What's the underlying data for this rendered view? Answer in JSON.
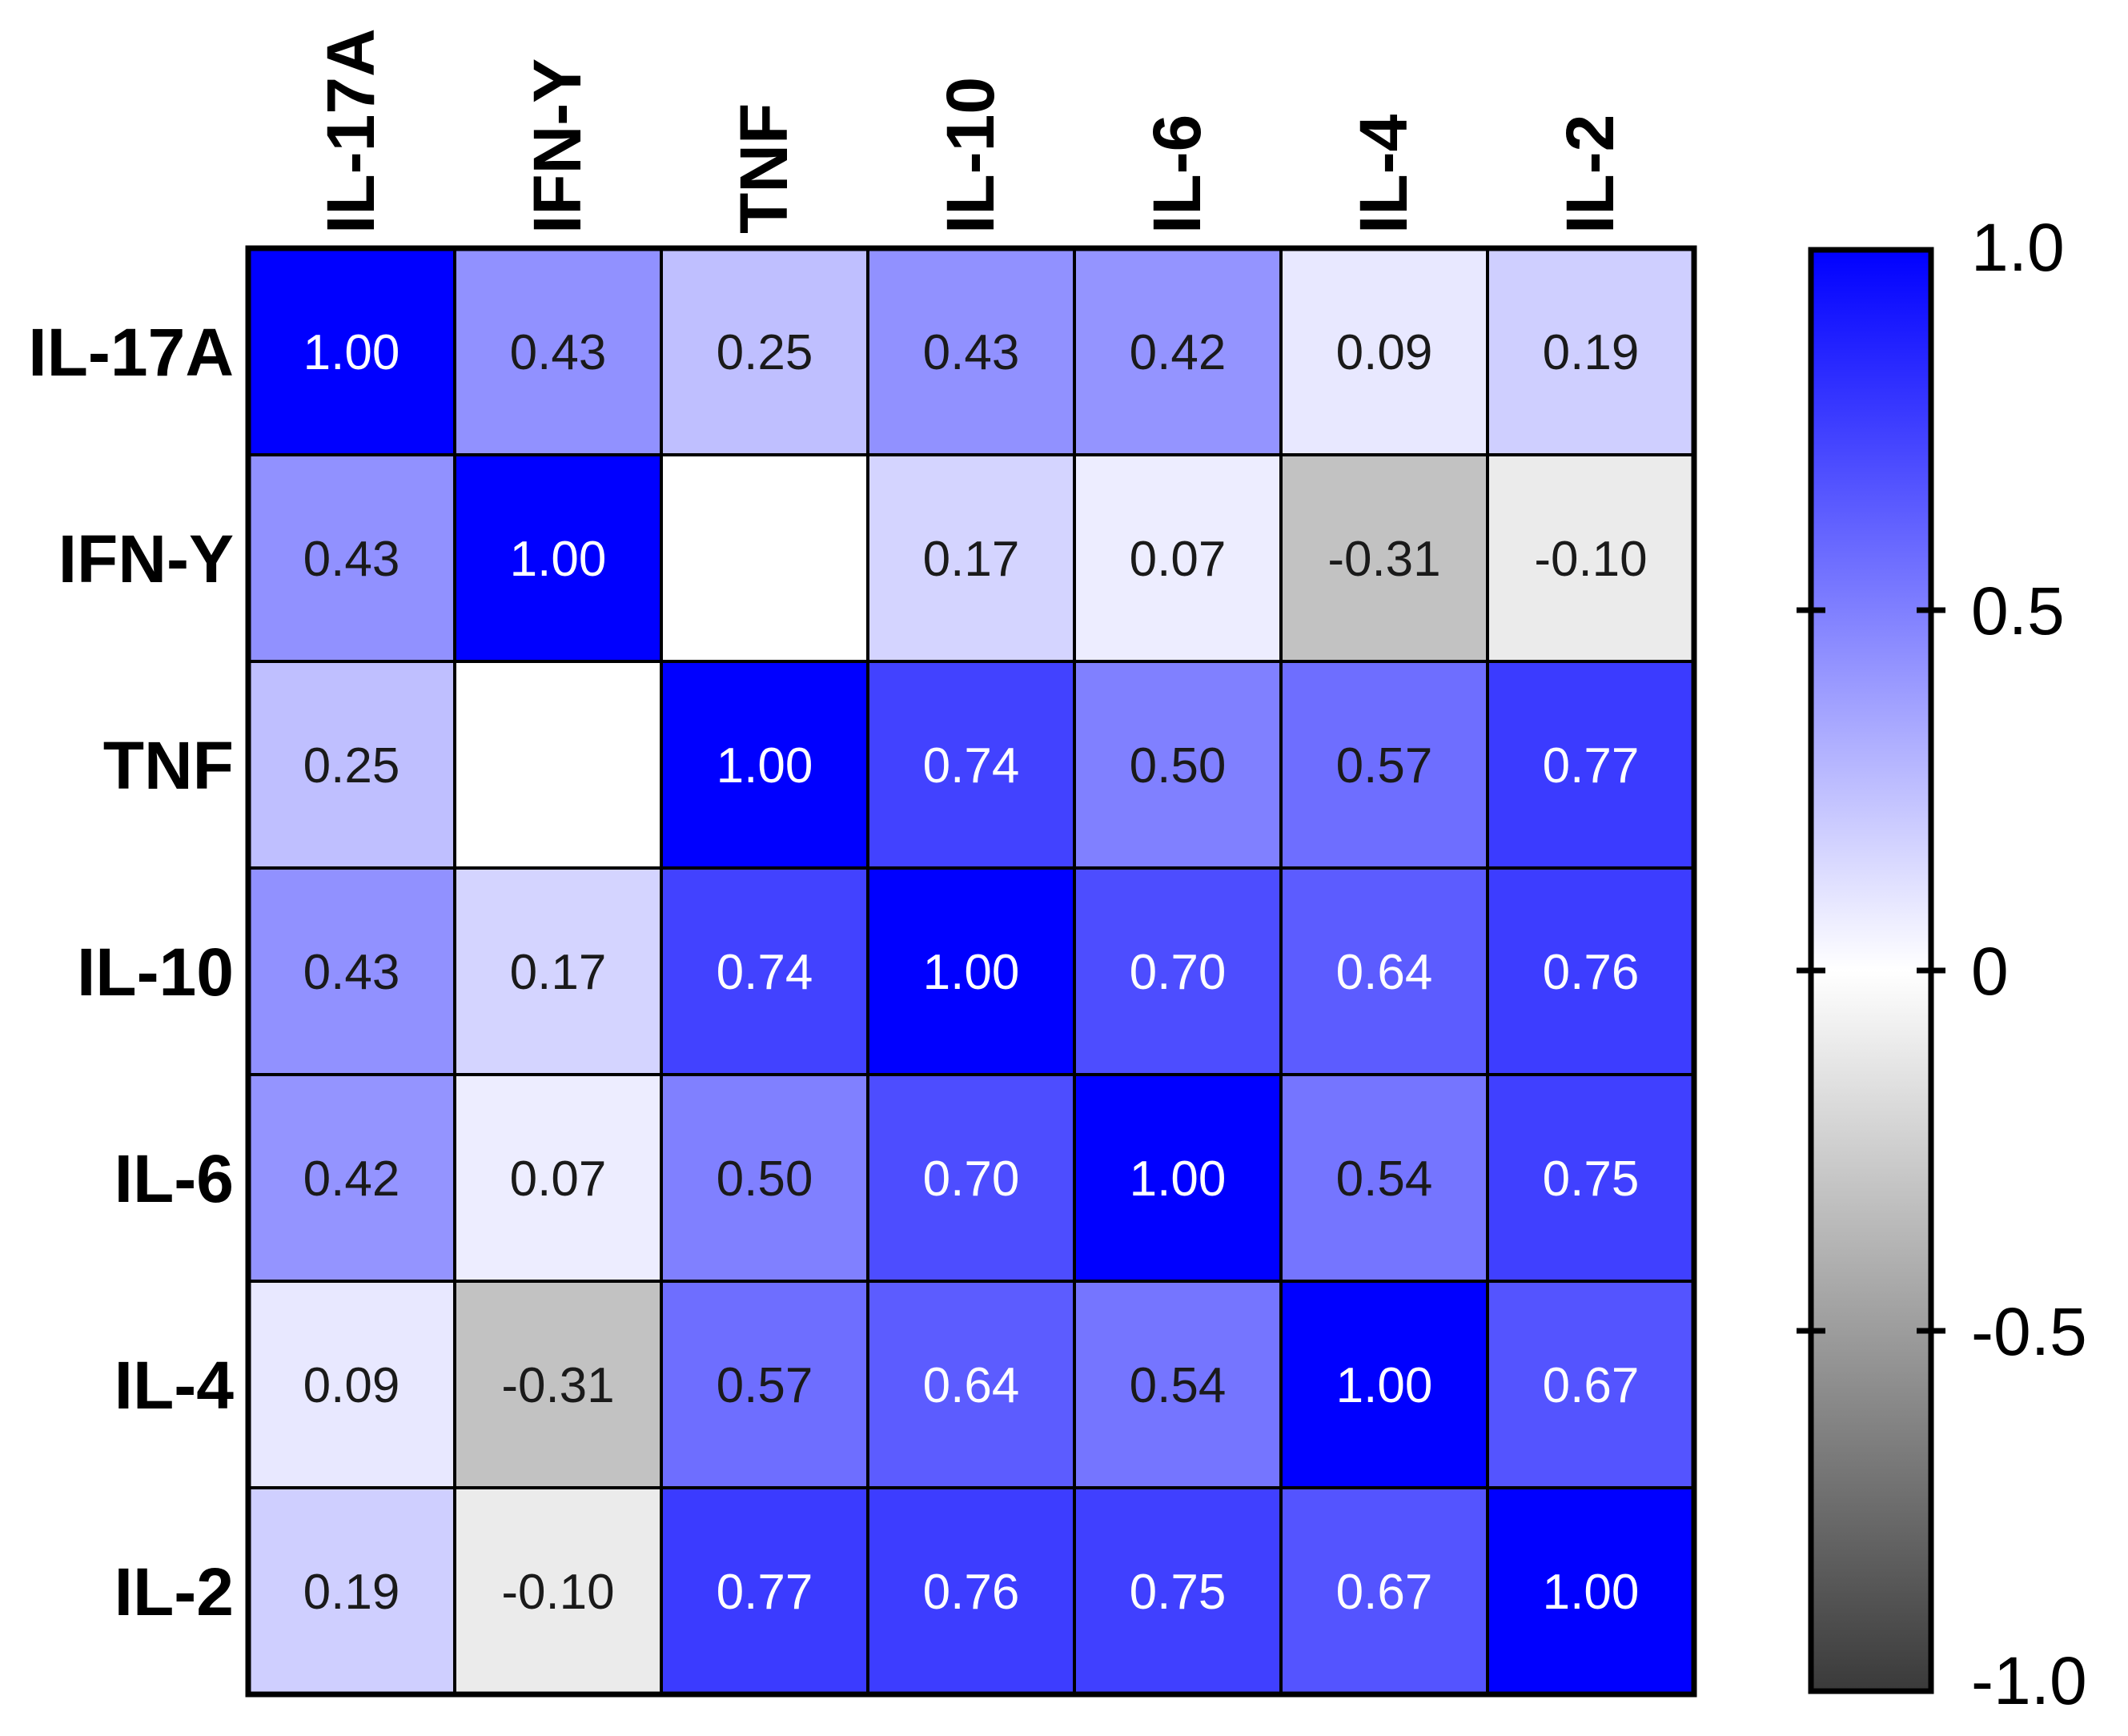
{
  "chart_data": {
    "type": "heatmap",
    "title": "",
    "row_labels": [
      "IL-17A",
      "IFN-Y",
      "TNF",
      "IL-10",
      "IL-6",
      "IL-4",
      "IL-2"
    ],
    "col_labels": [
      "IL-17A",
      "IFN-Y",
      "TNF",
      "IL-10",
      "IL-6",
      "IL-4",
      "IL-2"
    ],
    "values": [
      [
        1.0,
        0.43,
        0.25,
        0.43,
        0.42,
        0.09,
        0.19
      ],
      [
        0.43,
        1.0,
        null,
        0.17,
        0.07,
        -0.31,
        -0.1
      ],
      [
        0.25,
        null,
        1.0,
        0.74,
        0.5,
        0.57,
        0.77
      ],
      [
        0.43,
        0.17,
        0.74,
        1.0,
        0.7,
        0.64,
        0.76
      ],
      [
        0.42,
        0.07,
        0.5,
        0.7,
        1.0,
        0.54,
        0.75
      ],
      [
        0.09,
        -0.31,
        0.57,
        0.64,
        0.54,
        1.0,
        0.67
      ],
      [
        0.19,
        -0.1,
        0.77,
        0.76,
        0.75,
        0.67,
        1.0
      ]
    ],
    "colorbar": {
      "range": [
        -1.0,
        1.0
      ],
      "ticks": [
        1.0,
        0.5,
        0,
        -0.5,
        -1.0
      ],
      "tick_labels": [
        "1.0",
        "0.5",
        "0",
        "-0.5",
        "-1.0"
      ],
      "colors": {
        "positive": "#0000ff",
        "zero": "#ffffff",
        "negative": "#3a3a3a"
      }
    }
  }
}
